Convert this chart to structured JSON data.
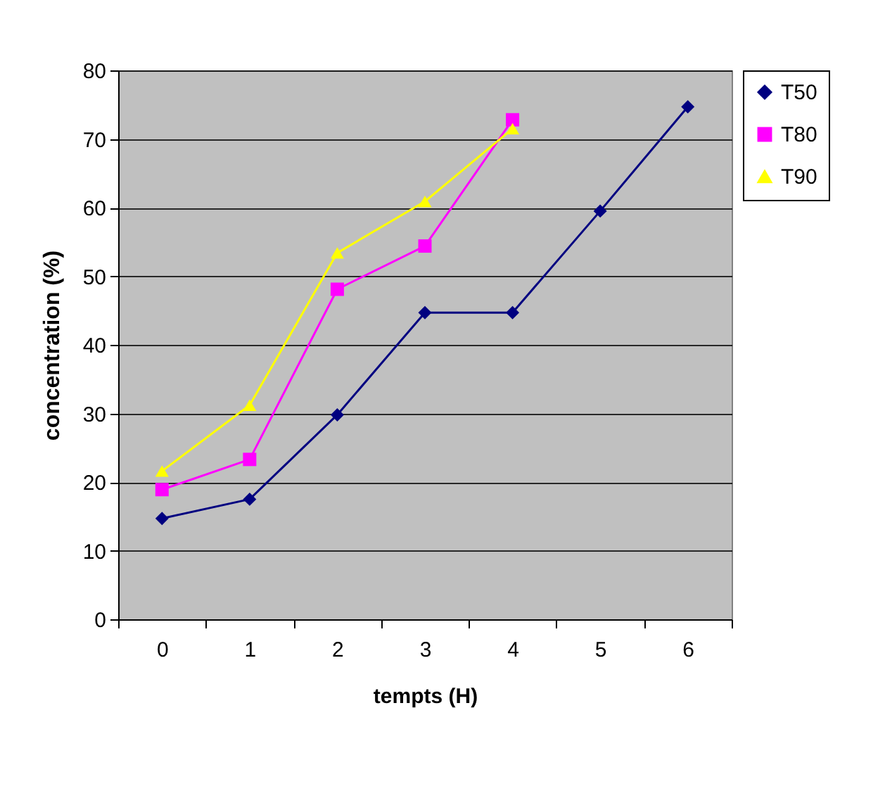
{
  "chart_data": {
    "type": "line",
    "xlabel": "tempts (H)",
    "ylabel": "concentration (%)",
    "categories": [
      "0",
      "1",
      "2",
      "3",
      "4",
      "5",
      "6"
    ],
    "series": [
      {
        "name": "T50",
        "color": "#000080",
        "marker": "diamond",
        "values": [
          14.7,
          17.5,
          29.8,
          44.7,
          44.7,
          59.5,
          74.7
        ]
      },
      {
        "name": "T80",
        "color": "#ff00ff",
        "marker": "square",
        "values": [
          18.9,
          23.3,
          48.1,
          54.4,
          72.8,
          null,
          null
        ]
      },
      {
        "name": "T90",
        "color": "#ffff00",
        "marker": "triangle",
        "values": [
          21.6,
          31.2,
          53.4,
          60.9,
          71.5,
          null,
          null
        ]
      }
    ],
    "ylim": [
      0,
      80
    ],
    "yticks": [
      0,
      10,
      20,
      30,
      40,
      50,
      60,
      70,
      80
    ],
    "grid": "y",
    "legend": "right"
  }
}
